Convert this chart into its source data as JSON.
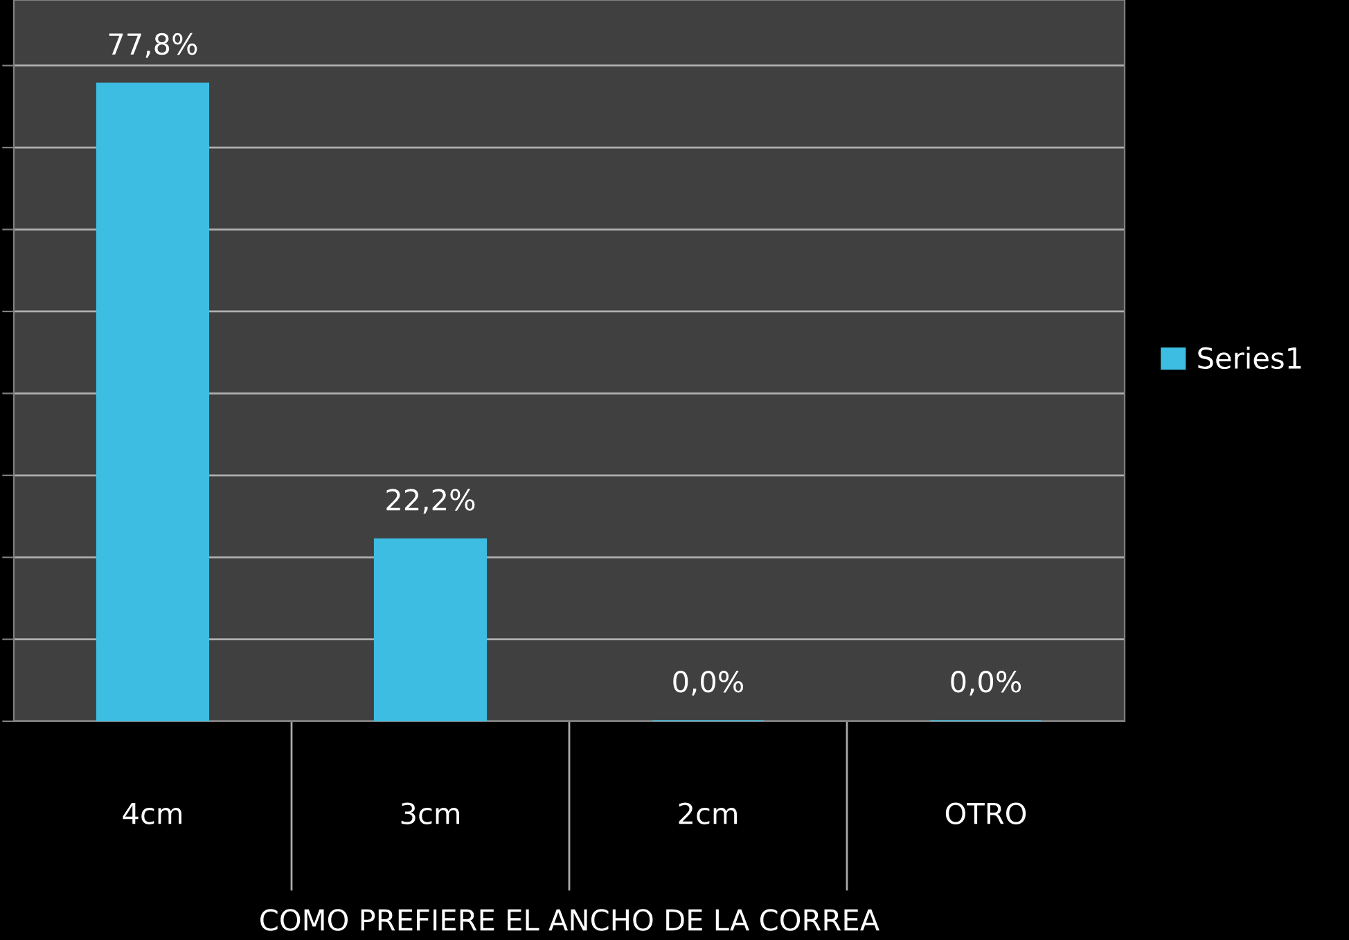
{
  "chart_data": {
    "type": "bar",
    "xlabel": "COMO PREFIERE EL ANCHO DE LA CORREA",
    "categories": [
      "4cm",
      "3cm",
      "2cm",
      "OTRO"
    ],
    "series": [
      {
        "name": "Series1",
        "color": "#3dbde2",
        "values": [
          77.8,
          22.2,
          0,
          0
        ],
        "value_labels": [
          "77,8%",
          "22,2%",
          "0,0%",
          "0,0%"
        ]
      }
    ],
    "ylim": [
      0,
      88
    ],
    "yticks": [
      {
        "value": 0,
        "label": null
      },
      {
        "value": 10,
        "label": null
      },
      {
        "value": 20,
        "label": null
      },
      {
        "value": 30,
        "label": null
      },
      {
        "value": 40,
        "label": null
      },
      {
        "value": 50,
        "label": null
      },
      {
        "value": 60,
        "label": null
      },
      {
        "value": 70,
        "label": null
      },
      {
        "value": 80,
        "label": null
      }
    ],
    "grid": "y",
    "legend": "right"
  }
}
